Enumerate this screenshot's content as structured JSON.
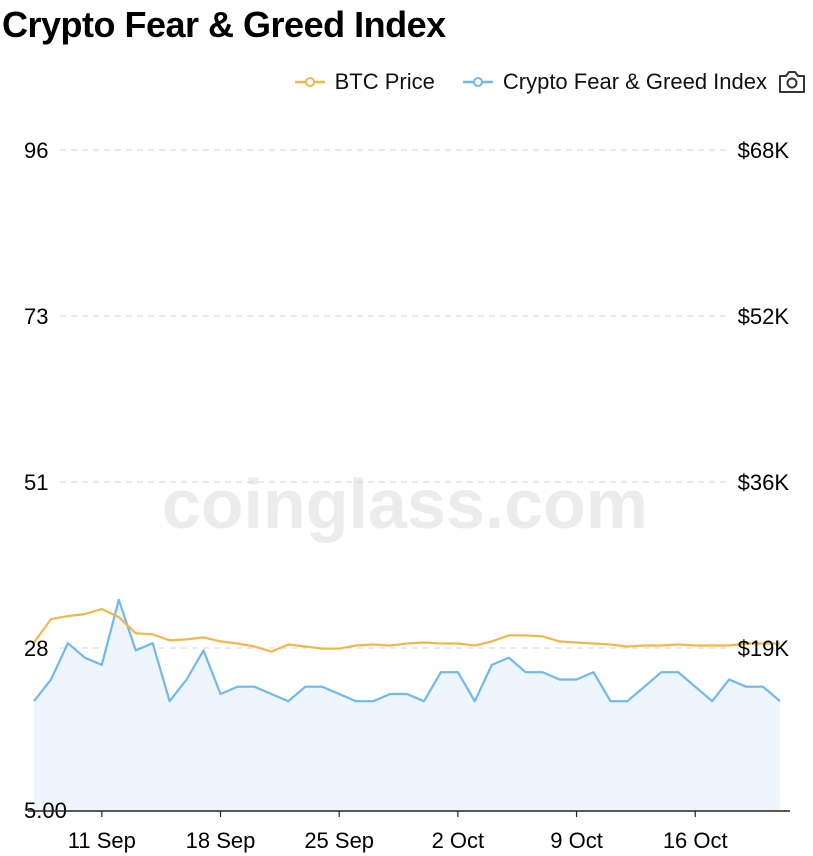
{
  "page": {
    "title": "Crypto Fear & Greed Index",
    "watermark": "coinglass.com"
  },
  "legend": {
    "items": [
      {
        "label": "BTC Price",
        "color": "#f0b84a"
      },
      {
        "label": "Crypto Fear & Greed Index",
        "color": "#6fb8f0"
      }
    ],
    "screenshot_icon": "camera-icon"
  },
  "chart_data": {
    "type": "line",
    "x_labels": [
      "11 Sep",
      "18 Sep",
      "25 Sep",
      "2 Oct",
      "9 Oct",
      "16 Oct"
    ],
    "y_left_ticks": [
      "96",
      "73",
      "51",
      "28",
      "5.00"
    ],
    "y_right_ticks": [
      "$68K",
      "$52K",
      "$36K",
      "$19K"
    ],
    "left_range": [
      5,
      96
    ],
    "right_range": [
      3000,
      68000
    ],
    "x_range": [
      0,
      44
    ],
    "x_label_positions": [
      4,
      11,
      18,
      25,
      32,
      39
    ],
    "grid": "horizontal dashed",
    "legend_position": "top-right",
    "series": [
      {
        "name": "BTC Price",
        "color": "#f0b84a",
        "axis": "right",
        "values": [
          19500,
          21800,
          22100,
          22300,
          22800,
          22000,
          20400,
          20300,
          19700,
          19800,
          20000,
          19600,
          19400,
          19100,
          18600,
          19300,
          19100,
          18900,
          18900,
          19200,
          19300,
          19200,
          19400,
          19500,
          19400,
          19400,
          19200,
          19600,
          20200,
          20200,
          20100,
          19600,
          19500,
          19400,
          19300,
          19100,
          19200,
          19200,
          19300,
          19200,
          19200,
          19200,
          19400,
          19400,
          19400
        ]
      },
      {
        "name": "Crypto Fear & Greed Index",
        "color": "#6fb8f0",
        "axis": "left",
        "values": [
          20,
          23,
          28,
          26,
          25,
          34,
          27,
          28,
          20,
          23,
          27,
          21,
          22,
          22,
          21,
          20,
          22,
          22,
          21,
          20,
          20,
          21,
          21,
          20,
          24,
          24,
          20,
          25,
          26,
          24,
          24,
          23,
          23,
          24,
          20,
          20,
          22,
          24,
          24,
          22,
          20,
          23,
          22,
          22,
          20
        ]
      }
    ]
  }
}
